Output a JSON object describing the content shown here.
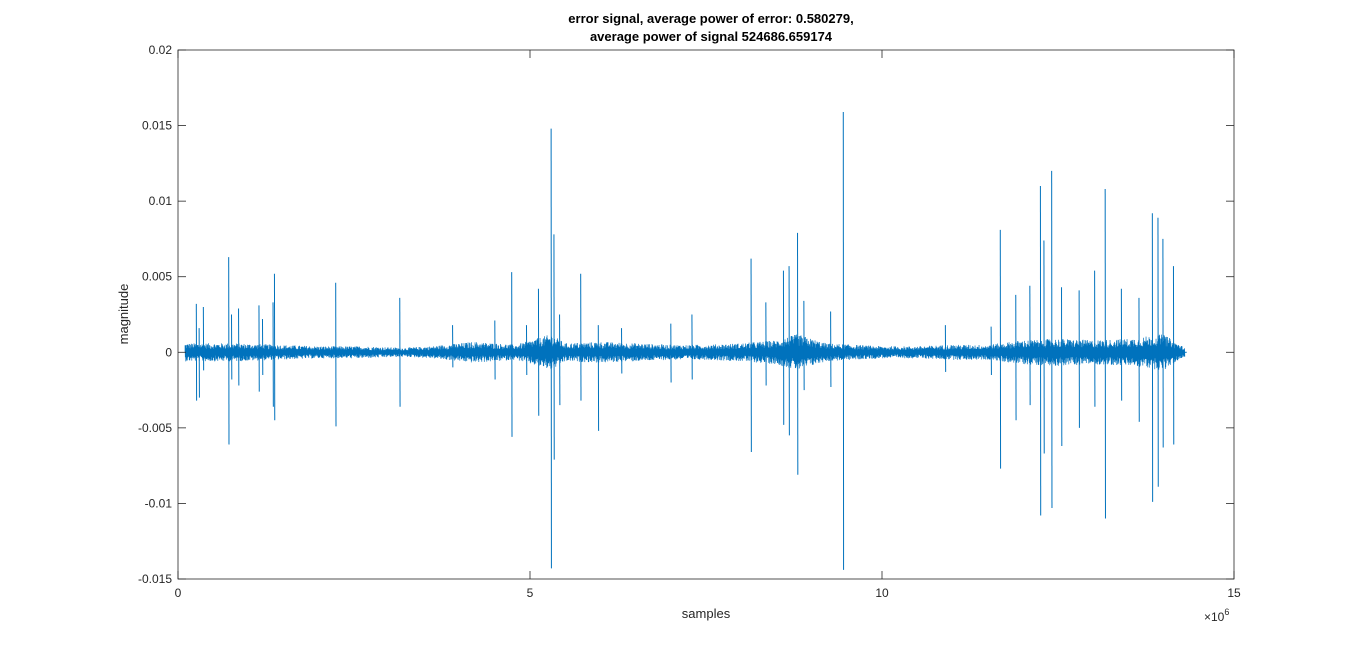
{
  "chart_data": {
    "type": "line",
    "title": [
      "error signal, average power of error: 0.580279,",
      "average power of signal 524686.659174"
    ],
    "xlabel": "samples",
    "ylabel": "magnitude",
    "x_exponent_label": "×10",
    "x_exponent_power": "6",
    "xlim": [
      0,
      15000000
    ],
    "ylim": [
      -0.015,
      0.02
    ],
    "x_ticks": [
      0,
      5000000,
      10000000,
      15000000
    ],
    "x_tick_labels": [
      "0",
      "5",
      "10",
      "15"
    ],
    "y_ticks": [
      -0.015,
      -0.01,
      -0.005,
      0,
      0.005,
      0.01,
      0.015,
      0.02
    ],
    "y_tick_labels": [
      "-0.015",
      "-0.01",
      "-0.005",
      "0",
      "0.005",
      "0.01",
      "0.015",
      "0.02"
    ],
    "grid": false,
    "line_color": "#0072BD",
    "noise_band": [
      [
        100000,
        0.0006
      ],
      [
        800000,
        0.0006
      ],
      [
        1400000,
        0.0005
      ],
      [
        2000000,
        0.0004
      ],
      [
        2600000,
        0.0004
      ],
      [
        3200000,
        0.0003
      ],
      [
        3600000,
        0.0004
      ],
      [
        4200000,
        0.0007
      ],
      [
        4800000,
        0.0005
      ],
      [
        5300000,
        0.0012
      ],
      [
        5500000,
        0.0006
      ],
      [
        6000000,
        0.0007
      ],
      [
        6500000,
        0.0006
      ],
      [
        7000000,
        0.0005
      ],
      [
        7500000,
        0.0005
      ],
      [
        8000000,
        0.0006
      ],
      [
        8500000,
        0.0008
      ],
      [
        8800000,
        0.0012
      ],
      [
        9200000,
        0.0006
      ],
      [
        9600000,
        0.0005
      ],
      [
        10000000,
        0.0004
      ],
      [
        10500000,
        0.0004
      ],
      [
        11000000,
        0.0005
      ],
      [
        11500000,
        0.0005
      ],
      [
        12000000,
        0.0008
      ],
      [
        12500000,
        0.0009
      ],
      [
        13000000,
        0.0008
      ],
      [
        13500000,
        0.0009
      ],
      [
        14000000,
        0.0012
      ],
      [
        14300000,
        0.0003
      ]
    ],
    "spikes": [
      [
        260000,
        0.0032,
        -0.0032
      ],
      [
        300000,
        0.0016,
        -0.003
      ],
      [
        360000,
        0.003,
        -0.0012
      ],
      [
        720000,
        0.0063,
        -0.0061
      ],
      [
        760000,
        0.0025,
        -0.0018
      ],
      [
        860000,
        0.0029,
        -0.0022
      ],
      [
        1150000,
        0.0031,
        -0.0026
      ],
      [
        1200000,
        0.0022,
        -0.0015
      ],
      [
        1350000,
        0.0033,
        -0.0036
      ],
      [
        1370000,
        0.0052,
        -0.0045
      ],
      [
        2240000,
        0.0046,
        -0.0049
      ],
      [
        3150000,
        0.0036,
        -0.0036
      ],
      [
        3900000,
        0.0018,
        -0.001
      ],
      [
        4500000,
        0.0021,
        -0.0018
      ],
      [
        4740000,
        0.0053,
        -0.0056
      ],
      [
        4950000,
        0.0018,
        -0.0015
      ],
      [
        5120000,
        0.0042,
        -0.0042
      ],
      [
        5300000,
        0.0148,
        -0.0143
      ],
      [
        5340000,
        0.0078,
        -0.0071
      ],
      [
        5420000,
        0.0025,
        -0.0035
      ],
      [
        5720000,
        0.0052,
        -0.0032
      ],
      [
        5970000,
        0.0018,
        -0.0052
      ],
      [
        6300000,
        0.0016,
        -0.0014
      ],
      [
        7000000,
        0.0019,
        -0.002
      ],
      [
        7300000,
        0.0025,
        -0.0018
      ],
      [
        8140000,
        0.0062,
        -0.0066
      ],
      [
        8350000,
        0.0033,
        -0.0022
      ],
      [
        8600000,
        0.0054,
        -0.0048
      ],
      [
        8680000,
        0.0057,
        -0.0055
      ],
      [
        8800000,
        0.0079,
        -0.0081
      ],
      [
        8890000,
        0.0034,
        -0.0025
      ],
      [
        9270000,
        0.0027,
        -0.0023
      ],
      [
        9450000,
        0.0159,
        -0.0144
      ],
      [
        10900000,
        0.0018,
        -0.0013
      ],
      [
        11550000,
        0.0017,
        -0.0015
      ],
      [
        11680000,
        0.0081,
        -0.0077
      ],
      [
        11900000,
        0.0038,
        -0.0045
      ],
      [
        12100000,
        0.0044,
        -0.0035
      ],
      [
        12250000,
        0.011,
        -0.0108
      ],
      [
        12300000,
        0.0074,
        -0.0067
      ],
      [
        12410000,
        0.012,
        -0.0103
      ],
      [
        12550000,
        0.0043,
        -0.0062
      ],
      [
        12800000,
        0.0041,
        -0.005
      ],
      [
        13020000,
        0.0054,
        -0.0036
      ],
      [
        13170000,
        0.0108,
        -0.011
      ],
      [
        13400000,
        0.0042,
        -0.0032
      ],
      [
        13650000,
        0.0036,
        -0.0046
      ],
      [
        13840000,
        0.0092,
        -0.0099
      ],
      [
        13920000,
        0.0089,
        -0.0089
      ],
      [
        13990000,
        0.0075,
        -0.0063
      ],
      [
        14140000,
        0.0057,
        -0.0061
      ]
    ]
  }
}
